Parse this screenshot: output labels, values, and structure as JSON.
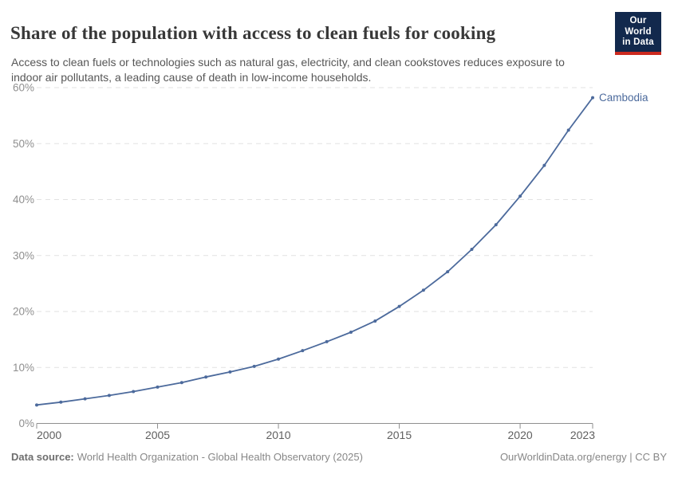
{
  "header": {
    "title": "Share of the population with access to clean fuels for cooking",
    "subtitle": "Access to clean fuels or technologies such as natural gas, electricity, and clean cookstoves reduces exposure to indoor air pollutants, a leading cause of death in low-income households.",
    "logo": {
      "line1": "Our World",
      "line2": "in Data"
    }
  },
  "chart_data": {
    "type": "line",
    "title": "Share of the population with access to clean fuels for cooking",
    "entity": "Cambodia",
    "x": [
      2000,
      2001,
      2002,
      2003,
      2004,
      2005,
      2006,
      2007,
      2008,
      2009,
      2010,
      2011,
      2012,
      2013,
      2014,
      2015,
      2016,
      2017,
      2018,
      2019,
      2020,
      2021,
      2022,
      2023
    ],
    "series": [
      {
        "name": "Cambodia",
        "color": "#4c6a9c",
        "values": [
          3.3,
          3.8,
          4.4,
          5.0,
          5.7,
          6.5,
          7.3,
          8.3,
          9.2,
          10.2,
          11.5,
          13.0,
          14.6,
          16.3,
          18.3,
          20.9,
          23.8,
          27.1,
          31.1,
          35.5,
          40.6,
          46.1,
          52.4,
          58.2
        ]
      }
    ],
    "xlabel": "",
    "ylabel": "",
    "ylim": [
      0,
      60
    ],
    "yticks": [
      0,
      10,
      20,
      30,
      40,
      50,
      60
    ],
    "ytick_suffix": "%",
    "xticks": [
      2000,
      2005,
      2010,
      2015,
      2020,
      2023
    ],
    "grid": "horizontal-dashed",
    "legend_position": "label-at-line-end"
  },
  "footer": {
    "source_label": "Data source:",
    "source_value": "World Health Organization - Global Health Observatory (2025)",
    "link": "OurWorldinData.org/energy | CC BY"
  },
  "colors": {
    "accent_line": "#4c6a9c",
    "grid": "#e2e2e2",
    "axis": "#8f8f8f",
    "y_label": "#8f8f8f",
    "x_label": "#5f5f5f",
    "title": "#383838",
    "subtitle": "#565656",
    "footer_text": "#878787",
    "logo_bg": "#12294d",
    "logo_stripe": "#cc2a1f"
  }
}
